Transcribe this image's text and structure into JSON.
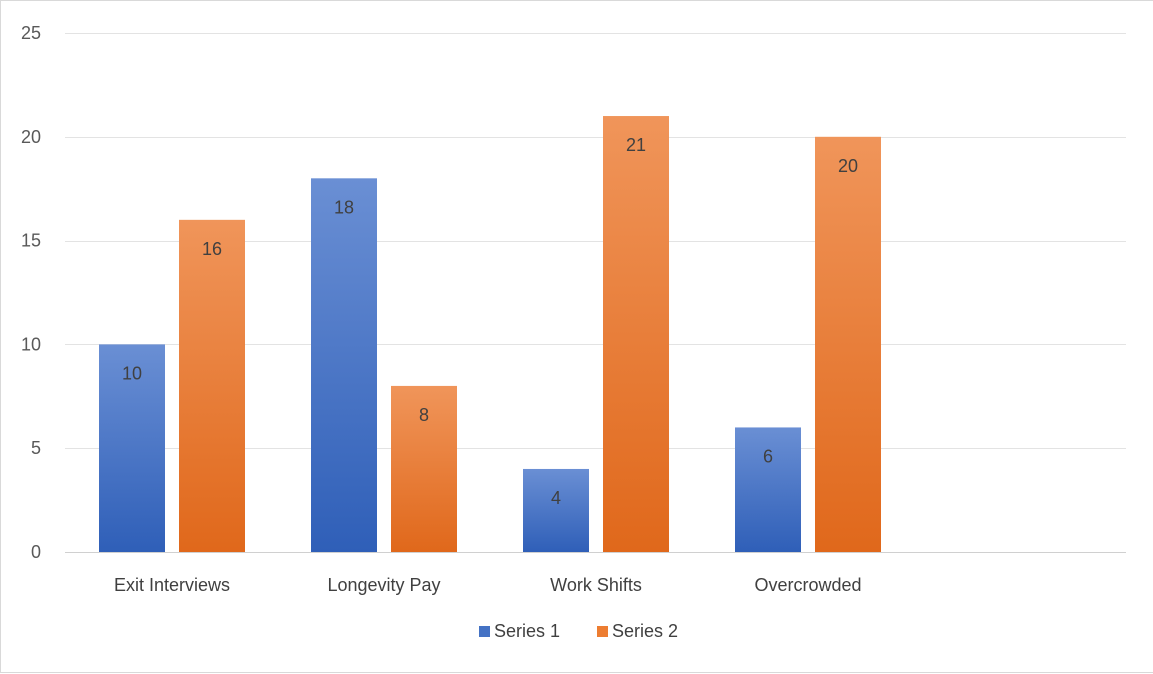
{
  "chart_data": {
    "type": "bar",
    "title": "",
    "xlabel": "",
    "ylabel": "",
    "categories": [
      "Exit Interviews",
      "Longevity Pay",
      "Work Shifts",
      "Overcrowded"
    ],
    "series": [
      {
        "name": "Series 1",
        "values": [
          10,
          18,
          4,
          6
        ],
        "color": "#4472C4"
      },
      {
        "name": "Series 2",
        "values": [
          16,
          8,
          21,
          20
        ],
        "color": "#ED7D31"
      }
    ],
    "ylim": [
      0,
      25
    ],
    "yticks": [
      0,
      5,
      10,
      15,
      20,
      25
    ],
    "grid": true,
    "legend": "bottom-center",
    "data_labels": true
  }
}
